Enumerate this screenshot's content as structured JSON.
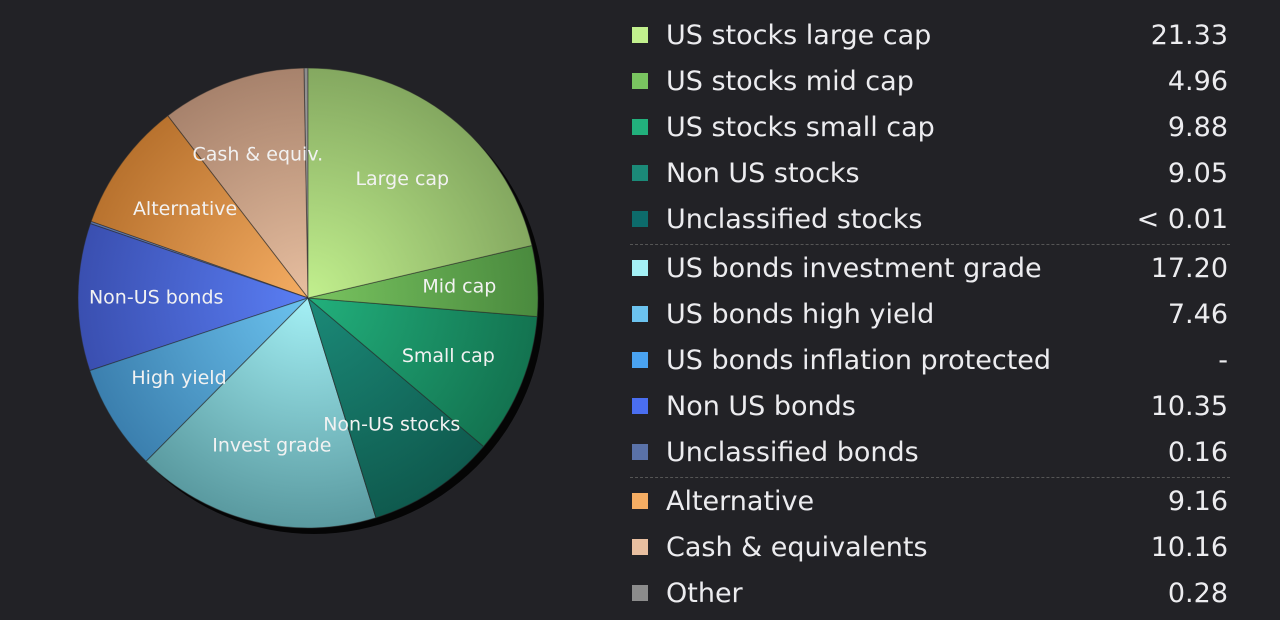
{
  "chart_data": {
    "type": "pie",
    "slices": [
      {
        "legend": "Other",
        "label": "",
        "value": 0.28,
        "color": "#8c8c8c",
        "highlight": "#b5b5b5"
      },
      {
        "legend": "Cash & equivalents",
        "label": "Cash & equiv.",
        "value": 10.16,
        "color": "#a7826c",
        "highlight": "#e8bfa0"
      },
      {
        "legend": "Alternative",
        "label": "Alternative",
        "value": 9.16,
        "color": "#b8722e",
        "highlight": "#f5ad63"
      },
      {
        "legend": "Unclassified bonds",
        "label": "",
        "value": 0.16,
        "color": "#5a72a8",
        "highlight": "#8aa3d6"
      },
      {
        "legend": "Non US bonds",
        "label": "Non-US bonds",
        "value": 10.35,
        "color": "#3a4fb0",
        "highlight": "#5a7ef4"
      },
      {
        "legend": "US bonds inflation protected",
        "label": "",
        "value": 0.0,
        "color": "#4a97dd",
        "highlight": "#6bb7f5"
      },
      {
        "legend": "US bonds high yield",
        "label": "High yield",
        "value": 7.46,
        "color": "#3b7fae",
        "highlight": "#6cc3ef"
      },
      {
        "legend": "US bonds investment grade",
        "label": "Invest grade",
        "value": 17.2,
        "color": "#5a9aa0",
        "highlight": "#a4f0f5"
      },
      {
        "legend": "Unclassified stocks",
        "label": "",
        "value": 0.005,
        "color": "#0e5a5a",
        "highlight": "#1a8080"
      },
      {
        "legend": "Non US stocks",
        "label": "Non-US stocks",
        "value": 9.05,
        "color": "#0f5a4e",
        "highlight": "#1b8a78"
      },
      {
        "legend": "US stocks small cap",
        "label": "Small cap",
        "value": 9.88,
        "color": "#137350",
        "highlight": "#22b07c"
      },
      {
        "legend": "US stocks mid cap",
        "label": "Mid cap",
        "value": 4.96,
        "color": "#4a8a3e",
        "highlight": "#79c460"
      },
      {
        "legend": "US stocks large cap",
        "label": "Large cap",
        "value": 21.33,
        "color": "#84a860",
        "highlight": "#c2f08e"
      }
    ]
  },
  "legend": {
    "rows": [
      {
        "name": "US stocks large cap",
        "value": "21.33",
        "color": "#c2f08e"
      },
      {
        "name": "US stocks mid cap",
        "value": "4.96",
        "color": "#79c460"
      },
      {
        "name": "US stocks small cap",
        "value": "9.88",
        "color": "#22b07c"
      },
      {
        "name": "Non US stocks",
        "value": "9.05",
        "color": "#1b8a78"
      },
      {
        "name": "Unclassified stocks",
        "value": "< 0.01",
        "color": "#0d6b6b"
      },
      {
        "name": "US bonds investment grade",
        "value": "17.20",
        "color": "#a4f0f5",
        "group_start": true
      },
      {
        "name": "US bonds high yield",
        "value": "7.46",
        "color": "#6cc3ef"
      },
      {
        "name": "US bonds inflation protected",
        "value": "-",
        "color": "#4aa3f0"
      },
      {
        "name": "Non US bonds",
        "value": "10.35",
        "color": "#4a6ef0"
      },
      {
        "name": "Unclassified bonds",
        "value": "0.16",
        "color": "#5a72a8"
      },
      {
        "name": "Alternative",
        "value": "9.16",
        "color": "#f5ad63",
        "group_start": true
      },
      {
        "name": "Cash & equivalents",
        "value": "10.16",
        "color": "#e8bfa0"
      },
      {
        "name": "Other",
        "value": "0.28",
        "color": "#8c8c8c"
      }
    ]
  }
}
